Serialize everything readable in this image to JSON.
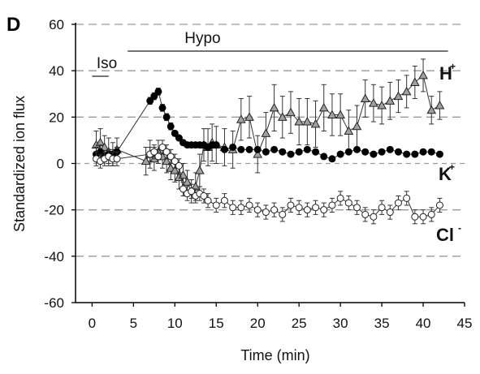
{
  "panel_letter": "D",
  "chart_data": {
    "type": "line",
    "xlabel": "Time (min)",
    "ylabel": "Standardized ion flux",
    "xlim": [
      -2,
      45
    ],
    "ylim": [
      -60,
      60
    ],
    "xticks": [
      0,
      5,
      10,
      15,
      20,
      25,
      30,
      35,
      40,
      45
    ],
    "yticks": [
      -60,
      -40,
      -20,
      0,
      20,
      40,
      60
    ],
    "grid": "dashed horizontal at 20, 40, -20, -40",
    "conditions": [
      {
        "label": "Iso",
        "x_start": 0,
        "x_end": 2
      },
      {
        "label": "Hypo",
        "x_start": 4.3,
        "x_end": 43
      }
    ],
    "series": [
      {
        "name": "H",
        "sup": "+",
        "marker": "triangle",
        "color": "#a0a0a0",
        "x": [
          0.5,
          1.0,
          1.5,
          2.0,
          2.5,
          3.0,
          6.5,
          7.0,
          7.5,
          8.0,
          8.5,
          9.0,
          9.5,
          10.0,
          10.5,
          11.0,
          11.5,
          12.0,
          12.5,
          13.0,
          13.5,
          14.0,
          14.5,
          15.0,
          16.0,
          17.0,
          18.0,
          19.0,
          20.0,
          21.0,
          22.0,
          23.0,
          24.0,
          25.0,
          26.0,
          27.0,
          28.0,
          29.0,
          30.0,
          31.0,
          32.0,
          33.0,
          34.0,
          35.0,
          36.0,
          37.0,
          38.0,
          39.0,
          40.0,
          41.0,
          42.0
        ],
        "y": [
          8,
          9,
          7,
          5,
          4,
          6,
          1,
          4,
          2,
          5,
          3,
          1,
          -2,
          -3,
          -6,
          -5,
          -8,
          -12,
          -10,
          -3,
          8,
          7,
          9,
          8,
          7,
          6,
          19,
          20,
          4,
          13,
          24,
          20,
          22,
          18,
          18,
          17,
          24,
          21,
          21,
          14,
          16,
          28,
          26,
          25,
          27,
          29,
          31,
          35,
          38,
          23,
          25
        ],
        "err": [
          6,
          6,
          5,
          6,
          5,
          5,
          6,
          6,
          5,
          5,
          5,
          5,
          5,
          5,
          5,
          5,
          5,
          5,
          6,
          7,
          7,
          8,
          8,
          8,
          8,
          8,
          9,
          9,
          8,
          9,
          10,
          9,
          9,
          10,
          10,
          10,
          10,
          9,
          9,
          9,
          9,
          8,
          8,
          8,
          8,
          7,
          7,
          7,
          7,
          6,
          6
        ]
      },
      {
        "name": "K",
        "sup": "+",
        "marker": "circle",
        "color": "#000000",
        "x": [
          0.5,
          1.0,
          1.5,
          2.0,
          2.5,
          3.0,
          7.0,
          7.5,
          8.0,
          8.5,
          9.0,
          9.5,
          10.0,
          10.5,
          11.0,
          11.5,
          12.0,
          12.5,
          13.0,
          13.5,
          14.0,
          14.5,
          15.0,
          16.0,
          17.0,
          18.0,
          19.0,
          20.0,
          21.0,
          22.0,
          23.0,
          24.0,
          25.0,
          26.0,
          27.0,
          28.0,
          29.0,
          30.0,
          31.0,
          32.0,
          33.0,
          34.0,
          35.0,
          36.0,
          37.0,
          38.0,
          39.0,
          40.0,
          41.0,
          42.0
        ],
        "y": [
          4,
          5,
          3,
          4,
          4,
          5,
          27,
          29,
          31,
          24,
          20,
          16,
          13,
          11,
          9,
          8,
          8,
          8,
          8,
          8,
          7,
          8,
          8,
          6,
          7,
          6,
          6,
          6,
          5,
          6,
          5,
          4,
          5,
          6,
          5,
          3,
          2,
          4,
          5,
          6,
          5,
          4,
          5,
          6,
          5,
          4,
          4,
          5,
          5,
          4
        ],
        "err": [
          3,
          3,
          2,
          2,
          2,
          2,
          1.5,
          1.5,
          1.5,
          1.5,
          1.5,
          1.5,
          1,
          1,
          1,
          1,
          1,
          1,
          1,
          1,
          1,
          1,
          1,
          1,
          1,
          1,
          1,
          1,
          1,
          1,
          1,
          1,
          1,
          1,
          1,
          1,
          1,
          1,
          1,
          1,
          1,
          1,
          1,
          1,
          1,
          1,
          1,
          1,
          1,
          1
        ]
      },
      {
        "name": "Cl",
        "sup": "-",
        "marker": "circle-open",
        "color": "#ffffff",
        "x": [
          0.5,
          1.0,
          1.5,
          2.0,
          2.5,
          3.0,
          7.0,
          7.5,
          8.0,
          8.5,
          9.0,
          9.5,
          10.0,
          10.5,
          11.0,
          11.5,
          12.0,
          12.5,
          13.0,
          13.5,
          14.0,
          15.0,
          16.0,
          17.0,
          18.0,
          19.0,
          20.0,
          21.0,
          22.0,
          23.0,
          24.0,
          25.0,
          26.0,
          27.0,
          28.0,
          29.0,
          30.0,
          31.0,
          32.0,
          33.0,
          34.0,
          35.0,
          36.0,
          37.0,
          38.0,
          39.0,
          40.0,
          41.0,
          42.0
        ],
        "y": [
          2,
          1,
          2,
          3,
          2,
          2,
          4,
          5,
          3,
          7,
          5,
          3,
          1,
          -1,
          -11,
          -13,
          -12,
          -14,
          -13,
          -14,
          -16,
          -18,
          -16,
          -19,
          -19,
          -18,
          -20,
          -21,
          -20,
          -22,
          -18,
          -19,
          -20,
          -19,
          -20,
          -18,
          -15,
          -17,
          -19,
          -22,
          -23,
          -19,
          -21,
          -17,
          -15,
          -23,
          -23,
          -22,
          -18
        ],
        "err": [
          3,
          3,
          3,
          3,
          3,
          3,
          3,
          3,
          3,
          3,
          3,
          3,
          3,
          3,
          3,
          3,
          3,
          3,
          3,
          3,
          3,
          3,
          3,
          3,
          3,
          3,
          3,
          3,
          3,
          3,
          3,
          3,
          3,
          3,
          3,
          3,
          3,
          3,
          3,
          3,
          3,
          3,
          3,
          3,
          3,
          3,
          3,
          3,
          3
        ]
      }
    ]
  }
}
